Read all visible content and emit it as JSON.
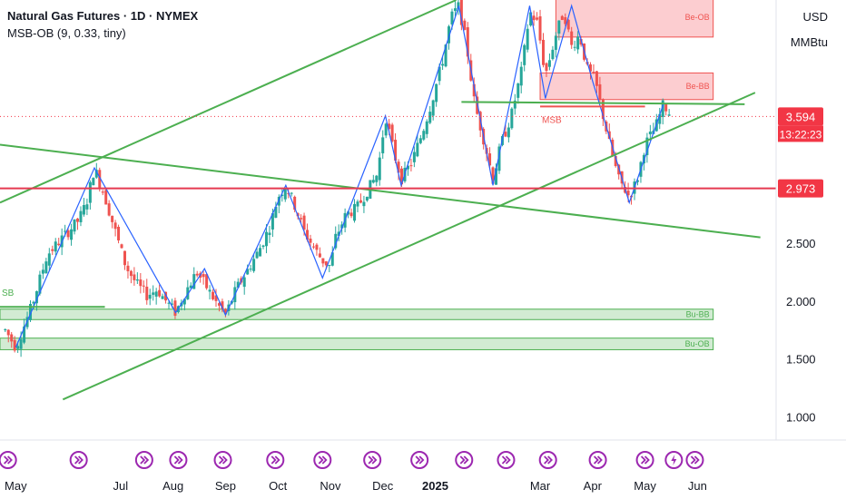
{
  "header": {
    "symbol_line": "Natural Gas Futures · 1D · NYMEX",
    "indicator_line": "MSB-OB (9, 0.33, tiny)"
  },
  "scale": {
    "currency": "USD",
    "unit": "MMBtu"
  },
  "colors": {
    "bull": "#26a69a",
    "bear": "#ef5350",
    "trend": "#4caf50",
    "zigzag": "#2962ff",
    "hline": "#e53950",
    "price": "#f23645",
    "event": "#9c27b0"
  },
  "chart_data": {
    "type": "candlestick",
    "title": "Natural Gas Futures · 1D · NYMEX",
    "ylim": [
      0.8,
      4.6
    ],
    "y_ticks": [
      1.0,
      1.5,
      2.0,
      2.5
    ],
    "x_labels": [
      {
        "label": "May",
        "x": 0
      },
      {
        "label": "Jul",
        "x": 2
      },
      {
        "label": "Aug",
        "x": 3
      },
      {
        "label": "Sep",
        "x": 4
      },
      {
        "label": "Oct",
        "x": 5
      },
      {
        "label": "Nov",
        "x": 6
      },
      {
        "label": "Dec",
        "x": 7
      },
      {
        "label": "2025",
        "x": 8
      },
      {
        "label": "Mar",
        "x": 10
      },
      {
        "label": "Apr",
        "x": 11
      },
      {
        "label": "May",
        "x": 12
      },
      {
        "label": "Jun",
        "x": 13
      }
    ],
    "xlim": [
      -0.3,
      14.5
    ],
    "price_series": [
      [
        -0.2,
        1.75
      ],
      [
        0.0,
        1.6
      ],
      [
        0.3,
        1.95
      ],
      [
        0.6,
        2.4
      ],
      [
        0.9,
        2.55
      ],
      [
        1.2,
        2.7
      ],
      [
        1.35,
        2.85
      ],
      [
        1.5,
        3.15
      ],
      [
        1.7,
        2.9
      ],
      [
        1.9,
        2.6
      ],
      [
        2.1,
        2.3
      ],
      [
        2.3,
        2.15
      ],
      [
        2.5,
        2.05
      ],
      [
        2.7,
        2.1
      ],
      [
        2.9,
        1.98
      ],
      [
        3.05,
        1.9
      ],
      [
        3.2,
        2.05
      ],
      [
        3.45,
        2.25
      ],
      [
        3.6,
        2.15
      ],
      [
        3.8,
        2.0
      ],
      [
        4.0,
        1.88
      ],
      [
        4.2,
        2.1
      ],
      [
        4.4,
        2.25
      ],
      [
        4.65,
        2.45
      ],
      [
        4.85,
        2.65
      ],
      [
        5.0,
        2.9
      ],
      [
        5.15,
        3.0
      ],
      [
        5.3,
        2.85
      ],
      [
        5.5,
        2.6
      ],
      [
        5.7,
        2.45
      ],
      [
        5.85,
        2.35
      ],
      [
        6.0,
        2.3
      ],
      [
        6.1,
        2.55
      ],
      [
        6.3,
        2.75
      ],
      [
        6.5,
        2.8
      ],
      [
        6.7,
        2.95
      ],
      [
        6.9,
        3.1
      ],
      [
        7.05,
        3.6
      ],
      [
        7.2,
        3.3
      ],
      [
        7.35,
        3.05
      ],
      [
        7.55,
        3.2
      ],
      [
        7.75,
        3.45
      ],
      [
        7.95,
        3.75
      ],
      [
        8.15,
        4.1
      ],
      [
        8.3,
        4.45
      ],
      [
        8.45,
        4.55
      ],
      [
        8.6,
        4.2
      ],
      [
        8.75,
        3.7
      ],
      [
        8.95,
        3.35
      ],
      [
        9.1,
        3.05
      ],
      [
        9.25,
        3.35
      ],
      [
        9.45,
        3.6
      ],
      [
        9.65,
        4.0
      ],
      [
        9.8,
        4.5
      ],
      [
        9.95,
        4.4
      ],
      [
        10.1,
        3.95
      ],
      [
        10.3,
        4.3
      ],
      [
        10.45,
        4.5
      ],
      [
        10.6,
        4.2
      ],
      [
        10.75,
        4.3
      ],
      [
        10.9,
        4.0
      ],
      [
        11.05,
        3.9
      ],
      [
        11.2,
        3.6
      ],
      [
        11.35,
        3.3
      ],
      [
        11.5,
        3.05
      ],
      [
        11.7,
        2.9
      ],
      [
        11.85,
        3.05
      ],
      [
        12.0,
        3.35
      ],
      [
        12.2,
        3.5
      ],
      [
        12.35,
        3.7
      ],
      [
        12.5,
        3.6
      ]
    ],
    "zigzag": [
      [
        0.0,
        1.6
      ],
      [
        1.5,
        3.15
      ],
      [
        3.05,
        1.9
      ],
      [
        3.6,
        2.28
      ],
      [
        4.0,
        1.88
      ],
      [
        5.15,
        3.0
      ],
      [
        5.85,
        2.2
      ],
      [
        7.05,
        3.6
      ],
      [
        7.35,
        3.0
      ],
      [
        8.45,
        4.55
      ],
      [
        9.1,
        3.0
      ],
      [
        9.8,
        4.55
      ],
      [
        10.1,
        3.75
      ],
      [
        10.6,
        4.55
      ],
      [
        11.0,
        3.9
      ],
      [
        11.7,
        2.85
      ],
      [
        12.35,
        3.7
      ]
    ],
    "trendlines": [
      {
        "x1": -0.3,
        "y1": 2.85,
        "x2": 8.4,
        "y2": 4.6
      },
      {
        "x1": -0.3,
        "y1": 3.35,
        "x2": 14.2,
        "y2": 2.55
      },
      {
        "x1": 0.9,
        "y1": 1.15,
        "x2": 14.1,
        "y2": 3.8
      },
      {
        "x1": 8.5,
        "y1": 3.72,
        "x2": 13.9,
        "y2": 3.7
      }
    ],
    "horizontal_line": {
      "price": 2.973,
      "label": "2.973"
    },
    "last_price": {
      "price": 3.594,
      "label": "3.594",
      "countdown": "13:22:23"
    },
    "zones": [
      {
        "label": "Be-OB",
        "kind": "bear",
        "x1": 10.3,
        "x2": 13.3,
        "top": 4.62,
        "bottom": 4.28
      },
      {
        "label": "Be-BB",
        "kind": "bear",
        "x1": 10.0,
        "x2": 13.3,
        "top": 3.97,
        "bottom": 3.74
      },
      {
        "label": "Bu-BB",
        "kind": "bull",
        "x1": -0.3,
        "x2": 13.3,
        "top": 1.93,
        "bottom": 1.84
      },
      {
        "label": "Bu-OB",
        "kind": "bull",
        "x1": -0.3,
        "x2": 13.3,
        "top": 1.68,
        "bottom": 1.58
      }
    ],
    "msb_labels": [
      {
        "label": "MSB",
        "kind": "bear",
        "x": 10.0,
        "y": 3.68,
        "line_x1": 10.0,
        "line_x2": 12.0
      },
      {
        "label": "SB",
        "kind": "bull",
        "x": -0.3,
        "y": 1.95,
        "line_x1": -0.3,
        "line_x2": 1.7
      }
    ],
    "event_markers": [
      -0.15,
      1.2,
      2.45,
      3.1,
      3.95,
      4.95,
      5.85,
      6.8,
      7.7,
      8.55,
      9.35,
      10.15,
      11.1,
      12.0,
      12.55,
      12.95
    ],
    "event_marker_special": 12.55
  }
}
